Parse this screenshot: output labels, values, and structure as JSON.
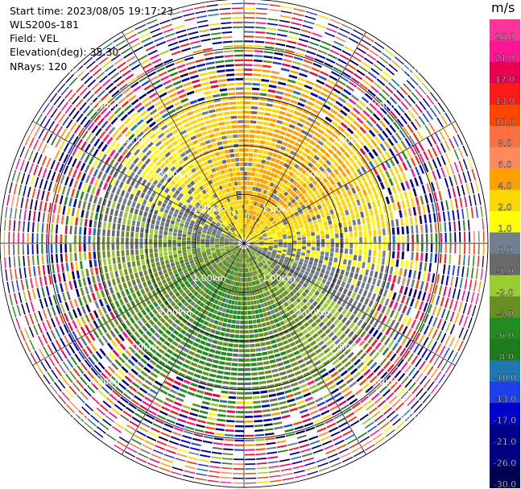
{
  "header": {
    "start_time": "Start time: 2023/08/05 19:17:23",
    "instrument": "WLS200s-181",
    "field": "Field: VEL",
    "elevation": "Elevation(deg): 35.30",
    "nrays": "NRays: 120"
  },
  "colorbar": {
    "unit": "m/s",
    "labels": [
      "26.0",
      "21.0",
      "17.0",
      "13.0",
      "10.0",
      "8.0",
      "6.0",
      "4.0",
      "2.0",
      "1.0",
      "0.0",
      "-1.0",
      "-2.0",
      "-4.0",
      "-6.0",
      "-8.0",
      "-10.0",
      "-13.0",
      "-17.0",
      "-21.0",
      "-26.0",
      "-30.0"
    ],
    "colors": [
      "#ff3399",
      "#ff1493",
      "#e8004f",
      "#ff1a1a",
      "#ff4500",
      "#ff7043",
      "#ff8a5c",
      "#ffa000",
      "#ffd700",
      "#ffff00",
      "#708090",
      "#696969",
      "#9acd32",
      "#6b8e23",
      "#228b22",
      "#1e7b1e",
      "#1f77b4",
      "#1e40e8",
      "#0000cd",
      "#00008b",
      "#000080",
      "#000050"
    ]
  },
  "chart_data": {
    "type": "heatmap",
    "plot": "PPI (plan position indicator) radial velocity",
    "field": "VEL",
    "units": "m/s",
    "elevation_deg": 35.3,
    "n_rays": 120,
    "range_ring_labels": [
      "1.00km",
      "2.00km",
      "3.00km",
      "4.00km",
      "5.00km"
    ],
    "range_rings_km": [
      1,
      2,
      3,
      4,
      5
    ],
    "max_range_km": 5.0,
    "color_levels": [
      -30,
      -26,
      -21,
      -17,
      -13,
      -10,
      -8,
      -6,
      -4,
      -2,
      -1,
      0,
      1,
      2,
      4,
      6,
      8,
      10,
      13,
      17,
      21,
      26
    ],
    "coherent_region": {
      "north_east_sector": "positive velocities ~2 to 6 m/s (yellow/orange) out to ~3 km",
      "south_west_sector": "negative velocities ~-2 to -6 m/s (green) out to ~3 km",
      "beyond_3km": "noisy random velocities spanning full scale"
    }
  }
}
